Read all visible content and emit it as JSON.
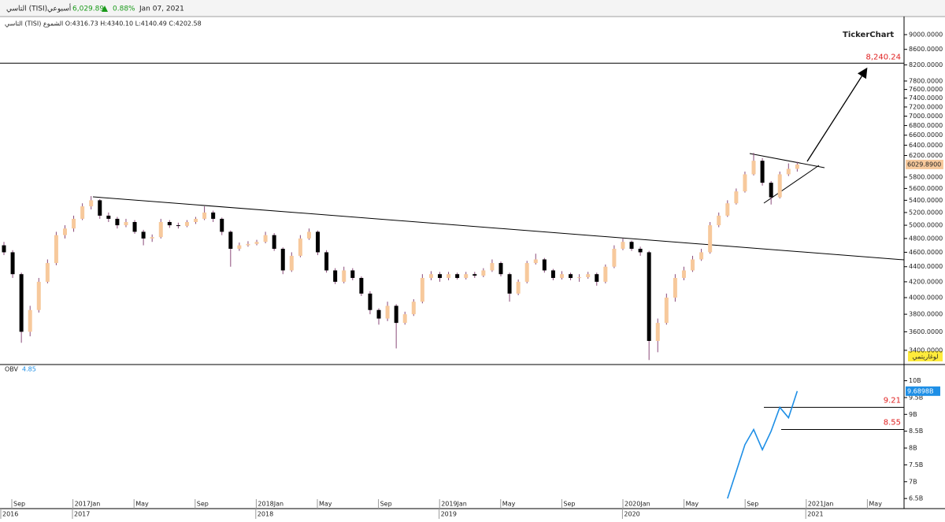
{
  "header": {
    "name": "التاسي (TISI)",
    "period": "أسبوعي",
    "price": "6,029.89",
    "change": "0.88%",
    "date": "Jan 07, 2021",
    "ohlc_line": "التاسي (TISI) الشموع O:4316.73 H:4340.10 L:4140.49 C:4202.58",
    "logo": "TickerChart",
    "scale_mode": "لوغاريتمي"
  },
  "chart_data": [
    {
      "type": "candlestick",
      "log_scale": true,
      "ylim": [
        3262,
        9356
      ],
      "yticks": [
        {
          "value": 9000,
          "label": "9000.0000"
        },
        {
          "value": 8600,
          "label": "8600.0000"
        },
        {
          "value": 8200,
          "label": "8200.0000"
        },
        {
          "value": 7800,
          "label": "7800.0000"
        },
        {
          "value": 7600,
          "label": "7600.0000"
        },
        {
          "value": 7400,
          "label": "7400.0000"
        },
        {
          "value": 7200,
          "label": "7200.0000"
        },
        {
          "value": 7000,
          "label": "7000.0000"
        },
        {
          "value": 6800,
          "label": "6800.0000"
        },
        {
          "value": 6600,
          "label": "6600.0000"
        },
        {
          "value": 6400,
          "label": "6400.0000"
        },
        {
          "value": 6200,
          "label": "6200.0000"
        },
        {
          "value": 5800,
          "label": "5800.0000"
        },
        {
          "value": 5600,
          "label": "5600.0000"
        },
        {
          "value": 5400,
          "label": "5400.0000"
        },
        {
          "value": 5200,
          "label": "5200.0000"
        },
        {
          "value": 5000,
          "label": "5000.0000"
        },
        {
          "value": 4800,
          "label": "4800.0000"
        },
        {
          "value": 4600,
          "label": "4600.0000"
        },
        {
          "value": 4400,
          "label": "4400.0000"
        },
        {
          "value": 4200,
          "label": "4200.0000"
        },
        {
          "value": 4000,
          "label": "4000.0000"
        },
        {
          "value": 3800,
          "label": "3800.0000"
        },
        {
          "value": 3600,
          "label": "3600.0000"
        },
        {
          "value": 3400,
          "label": "3400.0000"
        }
      ],
      "up_color": "#f7c99c",
      "down_color": "#000000",
      "wick_color": "#8a4a7a",
      "candles": [
        [
          4700,
          4750,
          4560,
          4600
        ],
        [
          4600,
          4630,
          4250,
          4300
        ],
        [
          4300,
          4320,
          3480,
          3600
        ],
        [
          3600,
          3900,
          3550,
          3850
        ],
        [
          3850,
          4250,
          3820,
          4200
        ],
        [
          4200,
          4500,
          4180,
          4450
        ],
        [
          4450,
          4900,
          4420,
          4850
        ],
        [
          4850,
          5000,
          4800,
          4950
        ],
        [
          4950,
          5150,
          4900,
          5100
        ],
        [
          5100,
          5350,
          5080,
          5300
        ],
        [
          5300,
          5470,
          5250,
          5400
        ],
        [
          5400,
          5420,
          5100,
          5150
        ],
        [
          5150,
          5200,
          5050,
          5100
        ],
        [
          5100,
          5130,
          4950,
          5000
        ],
        [
          5000,
          5100,
          4970,
          5050
        ],
        [
          5050,
          5080,
          4870,
          4900
        ],
        [
          4900,
          4930,
          4700,
          4800
        ],
        [
          4800,
          4860,
          4750,
          4820
        ],
        [
          4820,
          5100,
          4800,
          5050
        ],
        [
          5050,
          5080,
          4960,
          5000
        ],
        [
          5000,
          5040,
          4950,
          4990
        ],
        [
          4990,
          5080,
          4970,
          5050
        ],
        [
          5050,
          5130,
          5020,
          5100
        ],
        [
          5100,
          5300,
          5080,
          5200
        ],
        [
          5200,
          5230,
          5050,
          5100
        ],
        [
          5100,
          5120,
          4850,
          4900
        ],
        [
          4900,
          4920,
          4400,
          4650
        ],
        [
          4650,
          4740,
          4620,
          4700
        ],
        [
          4700,
          4760,
          4680,
          4720
        ],
        [
          4720,
          4780,
          4700,
          4750
        ],
        [
          4750,
          4900,
          4730,
          4850
        ],
        [
          4850,
          4880,
          4620,
          4650
        ],
        [
          4650,
          4670,
          4300,
          4350
        ],
        [
          4350,
          4600,
          4330,
          4550
        ],
        [
          4550,
          4850,
          4530,
          4800
        ],
        [
          4800,
          4950,
          4780,
          4900
        ],
        [
          4900,
          4920,
          4560,
          4600
        ],
        [
          4600,
          4630,
          4320,
          4350
        ],
        [
          4350,
          4380,
          4170,
          4200
        ],
        [
          4200,
          4400,
          4180,
          4350
        ],
        [
          4350,
          4380,
          4220,
          4250
        ],
        [
          4250,
          4270,
          4020,
          4050
        ],
        [
          4050,
          4080,
          3800,
          3850
        ],
        [
          3850,
          3870,
          3680,
          3750
        ],
        [
          3750,
          3950,
          3720,
          3900
        ],
        [
          3900,
          3920,
          3420,
          3700
        ],
        [
          3700,
          3830,
          3680,
          3800
        ],
        [
          3800,
          3980,
          3780,
          3950
        ],
        [
          3950,
          4300,
          3930,
          4250
        ],
        [
          4250,
          4340,
          4220,
          4300
        ],
        [
          4300,
          4330,
          4200,
          4250
        ],
        [
          4250,
          4330,
          4220,
          4300
        ],
        [
          4300,
          4320,
          4230,
          4250
        ],
        [
          4250,
          4330,
          4230,
          4300
        ],
        [
          4300,
          4330,
          4250,
          4280
        ],
        [
          4280,
          4380,
          4260,
          4350
        ],
        [
          4350,
          4500,
          4330,
          4450
        ],
        [
          4450,
          4470,
          4270,
          4300
        ],
        [
          4300,
          4320,
          3950,
          4050
        ],
        [
          4050,
          4230,
          4030,
          4200
        ],
        [
          4200,
          4480,
          4180,
          4450
        ],
        [
          4450,
          4580,
          4430,
          4500
        ],
        [
          4500,
          4520,
          4320,
          4350
        ],
        [
          4350,
          4370,
          4220,
          4250
        ],
        [
          4250,
          4340,
          4230,
          4300
        ],
        [
          4300,
          4320,
          4220,
          4250
        ],
        [
          4250,
          4300,
          4200,
          4260
        ],
        [
          4260,
          4330,
          4240,
          4300
        ],
        [
          4300,
          4320,
          4150,
          4200
        ],
        [
          4200,
          4430,
          4180,
          4400
        ],
        [
          4400,
          4700,
          4380,
          4650
        ],
        [
          4650,
          4800,
          4630,
          4750
        ],
        [
          4750,
          4770,
          4620,
          4650
        ],
        [
          4650,
          4680,
          4550,
          4600
        ],
        [
          4600,
          4620,
          3300,
          3500
        ],
        [
          3500,
          3750,
          3380,
          3700
        ],
        [
          3700,
          4050,
          3680,
          4000
        ],
        [
          4000,
          4300,
          3950,
          4250
        ],
        [
          4250,
          4400,
          4220,
          4350
        ],
        [
          4350,
          4550,
          4330,
          4500
        ],
        [
          4500,
          4650,
          4480,
          4600
        ],
        [
          4600,
          5050,
          4580,
          5000
        ],
        [
          5000,
          5200,
          4970,
          5150
        ],
        [
          5150,
          5400,
          5130,
          5350
        ],
        [
          5350,
          5600,
          5330,
          5550
        ],
        [
          5550,
          5900,
          5530,
          5850
        ],
        [
          5850,
          6250,
          5830,
          6100
        ],
        [
          6100,
          6150,
          5650,
          5700
        ],
        [
          5700,
          5730,
          5330,
          5450
        ],
        [
          5450,
          5900,
          5430,
          5850
        ],
        [
          5850,
          6050,
          5820,
          5950
        ],
        [
          5950,
          6080,
          5900,
          6029.89
        ]
      ],
      "last_value_label": "6029.8900",
      "last_color": "#f7c99c",
      "levels": [
        {
          "value": 8240.24,
          "label": "8,240.24"
        }
      ],
      "level_color": "#e02020"
    },
    {
      "type": "line",
      "title": "OBV",
      "subtitle": "4.85",
      "ylim": [
        6.2,
        10.2
      ],
      "yticks": [
        {
          "value": 10,
          "label": "10B"
        },
        {
          "value": 9.5,
          "label": "9.5B"
        },
        {
          "value": 9,
          "label": "9B"
        },
        {
          "value": 8.5,
          "label": "8.5B"
        },
        {
          "value": 8,
          "label": "8B"
        },
        {
          "value": 7.5,
          "label": "7.5B"
        },
        {
          "value": 7,
          "label": "7B"
        },
        {
          "value": 6.5,
          "label": "6.5B"
        }
      ],
      "series": [
        {
          "name": "OBV",
          "color": "#1e8fe6",
          "values": [
            null,
            null,
            null,
            null,
            null,
            null,
            null,
            null,
            null,
            null,
            null,
            null,
            null,
            null,
            null,
            null,
            null,
            null,
            null,
            null,
            null,
            null,
            null,
            null,
            null,
            null,
            null,
            null,
            null,
            null,
            null,
            null,
            null,
            null,
            null,
            null,
            null,
            null,
            null,
            null,
            null,
            null,
            null,
            null,
            null,
            null,
            null,
            null,
            null,
            null,
            null,
            null,
            null,
            null,
            null,
            null,
            null,
            null,
            null,
            null,
            null,
            null,
            null,
            null,
            null,
            null,
            null,
            null,
            null,
            null,
            null,
            null,
            null,
            null,
            null,
            null,
            null,
            null,
            null,
            null,
            null,
            null,
            null,
            6.5,
            7.3,
            8.1,
            8.55,
            7.95,
            8.5,
            9.21,
            8.9,
            9.6898
          ],
          "last_value_label": "9.6898B"
        }
      ],
      "levels": [
        9.21,
        8.55
      ],
      "level_color": "#e02020"
    }
  ],
  "x_axis": {
    "months": [
      "Sep",
      "2017Jan",
      "May",
      "Sep",
      "2018Jan",
      "May",
      "Sep",
      "2019Jan",
      "May",
      "Sep",
      "2020Jan",
      "May",
      "Sep",
      "2021Jan",
      "May"
    ],
    "years": [
      "2016",
      "2017",
      "2018",
      "2019",
      "2020",
      "2021"
    ]
  }
}
